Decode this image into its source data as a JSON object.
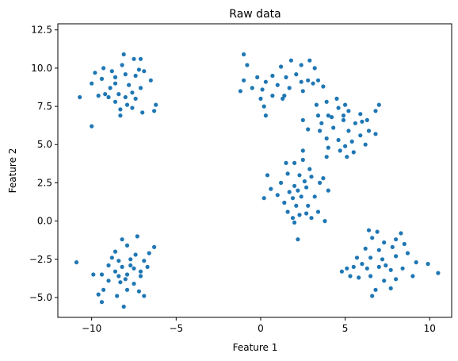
{
  "chart_data": {
    "type": "scatter",
    "title": "Raw data",
    "xlabel": "Feature 1",
    "ylabel": "Feature 2",
    "xlim": [
      -12,
      11.3
    ],
    "ylim": [
      -6.3,
      12.9
    ],
    "xticks": [
      -10,
      -5,
      0,
      5,
      10
    ],
    "yticks": [
      -5.0,
      -2.5,
      0.0,
      2.5,
      5.0,
      7.5,
      10.0,
      12.5
    ],
    "xtick_labels": [
      "−10",
      "−5",
      "0",
      "5",
      "10"
    ],
    "ytick_labels": [
      "−5.0",
      "−2.5",
      "0.0",
      "2.5",
      "5.0",
      "7.5",
      "10.0",
      "12.5"
    ],
    "grid": false,
    "legend": "none",
    "marker_color": "#1f77b4",
    "points": [
      [
        -8.8,
        9.8
      ],
      [
        -8.2,
        10.2
      ],
      [
        -7.5,
        10.6
      ],
      [
        -9.4,
        9.3
      ],
      [
        -8.0,
        9.6
      ],
      [
        -7.2,
        9.9
      ],
      [
        -8.6,
        9.0
      ],
      [
        -7.8,
        8.9
      ],
      [
        -9.8,
        9.7
      ],
      [
        -10.0,
        9.0
      ],
      [
        -6.5,
        9.2
      ],
      [
        -7.6,
        8.4
      ],
      [
        -8.4,
        8.3
      ],
      [
        -9.2,
        8.3
      ],
      [
        -8.0,
        8.1
      ],
      [
        -7.4,
        8.0
      ],
      [
        -8.6,
        7.8
      ],
      [
        -9.0,
        8.1
      ],
      [
        -7.9,
        7.6
      ],
      [
        -8.3,
        7.3
      ],
      [
        -7.6,
        7.4
      ],
      [
        -8.3,
        6.9
      ],
      [
        -6.2,
        7.6
      ],
      [
        -6.3,
        7.2
      ],
      [
        -7.0,
        7.1
      ],
      [
        -10.0,
        6.2
      ],
      [
        -10.7,
        8.1
      ],
      [
        -9.6,
        8.2
      ],
      [
        -8.1,
        10.9
      ],
      [
        -7.1,
        10.6
      ],
      [
        -8.6,
        9.4
      ],
      [
        -7.4,
        9.5
      ],
      [
        -8.9,
        8.7
      ],
      [
        -7.1,
        8.7
      ],
      [
        -9.3,
        10.0
      ],
      [
        -6.9,
        9.8
      ],
      [
        1.2,
        10.1
      ],
      [
        1.8,
        10.5
      ],
      [
        2.4,
        10.2
      ],
      [
        0.7,
        9.5
      ],
      [
        1.5,
        9.4
      ],
      [
        2.1,
        9.6
      ],
      [
        2.8,
        9.2
      ],
      [
        0.3,
        9.1
      ],
      [
        1.0,
        8.9
      ],
      [
        1.7,
        8.7
      ],
      [
        0.1,
        8.6
      ],
      [
        0.7,
        8.2
      ],
      [
        1.4,
        8.2
      ],
      [
        2.5,
        8.5
      ],
      [
        3.1,
        9.0
      ],
      [
        -0.2,
        9.4
      ],
      [
        -0.5,
        8.7
      ],
      [
        -1.2,
        8.5
      ],
      [
        0.0,
        8.0
      ],
      [
        0.2,
        7.5
      ],
      [
        0.3,
        6.9
      ],
      [
        -0.8,
        10.2
      ],
      [
        -1.0,
        9.2
      ],
      [
        3.4,
        9.2
      ],
      [
        3.7,
        8.8
      ],
      [
        2.9,
        10.5
      ],
      [
        3.2,
        10.0
      ],
      [
        -1.0,
        10.9
      ],
      [
        2.4,
        9.1
      ],
      [
        1.3,
        8.0
      ],
      [
        4.6,
        7.4
      ],
      [
        5.2,
        7.2
      ],
      [
        5.9,
        7.0
      ],
      [
        4.0,
        6.9
      ],
      [
        4.9,
        6.6
      ],
      [
        5.6,
        6.4
      ],
      [
        6.3,
        6.6
      ],
      [
        3.6,
        6.4
      ],
      [
        4.3,
        6.1
      ],
      [
        5.2,
        5.9
      ],
      [
        5.9,
        5.6
      ],
      [
        3.5,
        5.9
      ],
      [
        2.8,
        6.0
      ],
      [
        2.5,
        6.6
      ],
      [
        3.9,
        5.4
      ],
      [
        4.6,
        5.3
      ],
      [
        5.4,
        5.2
      ],
      [
        4.0,
        4.8
      ],
      [
        4.7,
        4.6
      ],
      [
        5.5,
        4.5
      ],
      [
        6.4,
        5.9
      ],
      [
        6.8,
        7.2
      ],
      [
        7.0,
        7.6
      ],
      [
        3.9,
        7.8
      ],
      [
        3.3,
        7.6
      ],
      [
        4.5,
        8.0
      ],
      [
        6.8,
        5.7
      ],
      [
        6.2,
        5.0
      ],
      [
        3.9,
        4.2
      ],
      [
        5.1,
        4.2
      ],
      [
        5.0,
        7.6
      ],
      [
        4.2,
        6.8
      ],
      [
        4.9,
        6.9
      ],
      [
        3.4,
        6.9
      ],
      [
        5.0,
        4.9
      ],
      [
        6.0,
        6.5
      ],
      [
        2.0,
        3.8
      ],
      [
        2.5,
        4.0
      ],
      [
        1.6,
        3.1
      ],
      [
        2.3,
        3.0
      ],
      [
        3.0,
        2.9
      ],
      [
        1.2,
        2.5
      ],
      [
        2.0,
        2.3
      ],
      [
        2.7,
        2.2
      ],
      [
        3.5,
        2.5
      ],
      [
        1.0,
        1.7
      ],
      [
        1.7,
        1.9
      ],
      [
        2.4,
        1.6
      ],
      [
        3.2,
        1.6
      ],
      [
        1.4,
        1.2
      ],
      [
        2.1,
        1.0
      ],
      [
        2.8,
        1.0
      ],
      [
        1.6,
        0.6
      ],
      [
        2.3,
        0.4
      ],
      [
        3.0,
        0.2
      ],
      [
        2.0,
        -0.1
      ],
      [
        0.2,
        1.5
      ],
      [
        0.6,
        2.1
      ],
      [
        0.4,
        3.0
      ],
      [
        4.0,
        2.0
      ],
      [
        3.7,
        2.8
      ],
      [
        3.4,
        0.6
      ],
      [
        2.5,
        4.6
      ],
      [
        2.7,
        0.5
      ],
      [
        3.8,
        0.0
      ],
      [
        2.2,
        -1.2
      ],
      [
        1.5,
        3.8
      ],
      [
        2.6,
        2.6
      ],
      [
        1.9,
        1.5
      ],
      [
        2.2,
        2.0
      ],
      [
        2.9,
        3.4
      ],
      [
        1.9,
        0.2
      ],
      [
        6.6,
        -1.1
      ],
      [
        7.3,
        -1.4
      ],
      [
        8.0,
        -1.2
      ],
      [
        6.2,
        -1.8
      ],
      [
        7.0,
        -1.9
      ],
      [
        7.8,
        -1.7
      ],
      [
        8.5,
        -1.5
      ],
      [
        5.7,
        -2.4
      ],
      [
        6.5,
        -2.4
      ],
      [
        7.2,
        -2.5
      ],
      [
        8.0,
        -2.3
      ],
      [
        8.7,
        -2.1
      ],
      [
        9.2,
        -2.7
      ],
      [
        5.5,
        -3.0
      ],
      [
        6.3,
        -3.1
      ],
      [
        7.0,
        -3.0
      ],
      [
        7.7,
        -3.2
      ],
      [
        8.4,
        -3.1
      ],
      [
        5.8,
        -3.7
      ],
      [
        6.5,
        -3.6
      ],
      [
        7.3,
        -3.9
      ],
      [
        8.0,
        -3.8
      ],
      [
        6.8,
        -4.5
      ],
      [
        7.7,
        -4.4
      ],
      [
        6.6,
        -4.9
      ],
      [
        5.1,
        -3.1
      ],
      [
        4.8,
        -3.3
      ],
      [
        5.3,
        -3.6
      ],
      [
        9.9,
        -2.8
      ],
      [
        10.5,
        -3.4
      ],
      [
        9.0,
        -3.6
      ],
      [
        6.9,
        -0.7
      ],
      [
        6.4,
        -0.6
      ],
      [
        8.3,
        -0.8
      ],
      [
        7.4,
        -2.9
      ],
      [
        6.0,
        -2.8
      ],
      [
        -8.2,
        -1.2
      ],
      [
        -7.3,
        -1.0
      ],
      [
        -7.9,
        -1.6
      ],
      [
        -8.6,
        -2.0
      ],
      [
        -7.4,
        -2.2
      ],
      [
        -6.6,
        -2.1
      ],
      [
        -8.4,
        -2.6
      ],
      [
        -7.7,
        -2.5
      ],
      [
        -6.9,
        -2.6
      ],
      [
        -9.0,
        -2.9
      ],
      [
        -8.2,
        -3.0
      ],
      [
        -7.5,
        -3.1
      ],
      [
        -6.7,
        -3.0
      ],
      [
        -9.4,
        -3.5
      ],
      [
        -8.6,
        -3.3
      ],
      [
        -7.9,
        -3.5
      ],
      [
        -7.1,
        -3.6
      ],
      [
        -9.0,
        -3.9
      ],
      [
        -8.3,
        -4.0
      ],
      [
        -7.5,
        -4.1
      ],
      [
        -9.3,
        -4.5
      ],
      [
        -7.9,
        -4.5
      ],
      [
        -7.2,
        -4.6
      ],
      [
        -8.5,
        -4.9
      ],
      [
        -9.6,
        -4.8
      ],
      [
        -9.9,
        -3.5
      ],
      [
        -9.4,
        -5.3
      ],
      [
        -8.1,
        -5.6
      ],
      [
        -10.9,
        -2.7
      ],
      [
        -6.3,
        -1.7
      ],
      [
        -8.0,
        -3.8
      ],
      [
        -7.7,
        -2.9
      ],
      [
        -8.8,
        -2.4
      ],
      [
        -7.1,
        -3.3
      ],
      [
        -8.4,
        -3.6
      ],
      [
        -6.9,
        -4.9
      ]
    ]
  }
}
